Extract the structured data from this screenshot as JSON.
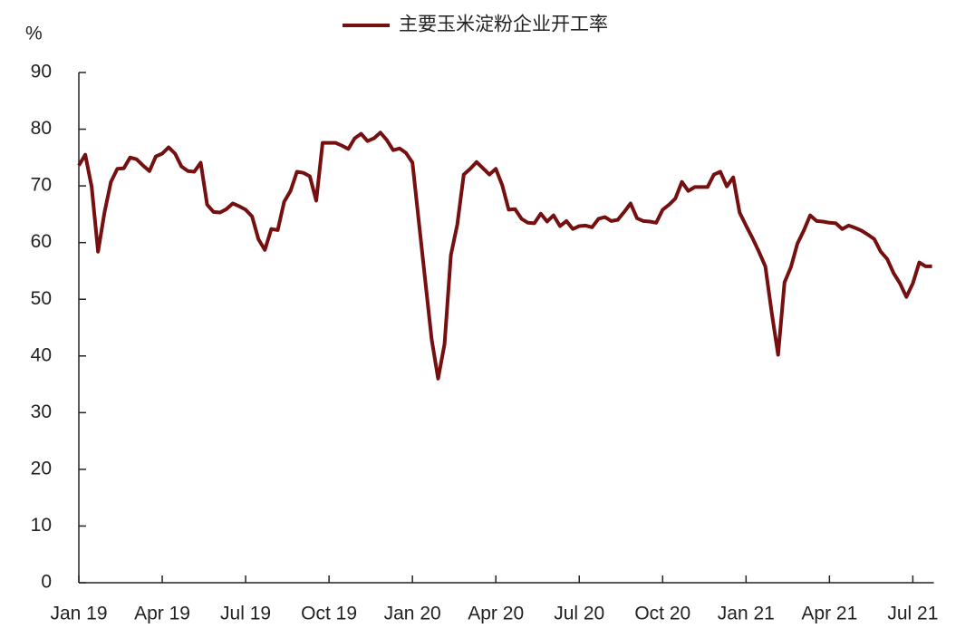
{
  "chart_data": {
    "type": "line",
    "y_label": "%",
    "categories": [
      "Jan 19",
      null,
      null,
      null,
      null,
      null,
      null,
      null,
      null,
      null,
      null,
      null,
      null,
      "Apr 19",
      null,
      null,
      null,
      null,
      null,
      null,
      null,
      null,
      null,
      null,
      null,
      null,
      "Jul 19",
      null,
      null,
      null,
      null,
      null,
      null,
      null,
      null,
      null,
      null,
      null,
      null,
      "Oct 19",
      null,
      null,
      null,
      null,
      null,
      null,
      null,
      null,
      null,
      null,
      null,
      null,
      "Jan 20",
      null,
      null,
      null,
      null,
      null,
      null,
      null,
      null,
      null,
      null,
      null,
      null,
      "Apr 20",
      null,
      null,
      null,
      null,
      null,
      null,
      null,
      null,
      null,
      null,
      null,
      null,
      "Jul 20",
      null,
      null,
      null,
      null,
      null,
      null,
      null,
      null,
      null,
      null,
      null,
      null,
      "Oct 20",
      null,
      null,
      null,
      null,
      null,
      null,
      null,
      null,
      null,
      null,
      null,
      null,
      "Jan 21",
      null,
      null,
      null,
      null,
      null,
      null,
      null,
      null,
      null,
      null,
      null,
      null,
      "Apr 21",
      null,
      null,
      null,
      null,
      null,
      null,
      null,
      null,
      null,
      null,
      null,
      null,
      "Jul 21",
      null,
      null,
      null
    ],
    "series": [
      {
        "name": "主要玉米淀粉企业开工率",
        "color": "#760f0f",
        "values": [
          73.6,
          75.5,
          69.8,
          58.4,
          65.3,
          70.7,
          73.0,
          73.1,
          75.0,
          74.7,
          73.6,
          72.6,
          75.2,
          75.7,
          76.8,
          75.7,
          73.4,
          72.6,
          72.5,
          74.1,
          66.7,
          65.4,
          65.3,
          65.9,
          66.9,
          66.4,
          65.8,
          64.6,
          60.6,
          58.7,
          62.4,
          62.2,
          67.2,
          69.1,
          72.5,
          72.3,
          71.7,
          67.4,
          77.6,
          77.6,
          77.6,
          77.1,
          76.5,
          78.4,
          79.2,
          77.9,
          78.4,
          79.4,
          78.1,
          76.3,
          76.6,
          75.8,
          74.1,
          63.7,
          53.3,
          42.9,
          36.0,
          42.1,
          57.8,
          63.2,
          72.0,
          73.0,
          74.2,
          73.1,
          72.0,
          73.0,
          70.1,
          65.8,
          65.9,
          64.2,
          63.5,
          63.4,
          65.1,
          63.7,
          64.8,
          62.9,
          63.8,
          62.4,
          62.9,
          63.0,
          62.7,
          64.2,
          64.5,
          63.8,
          64.0,
          65.4,
          66.9,
          64.3,
          63.8,
          63.7,
          63.5,
          65.8,
          66.7,
          67.8,
          70.7,
          69.1,
          69.8,
          69.8,
          69.8,
          72.0,
          72.5,
          69.9,
          71.5,
          65.3,
          63.0,
          60.8,
          58.4,
          55.8,
          47.7,
          40.2,
          53.0,
          55.7,
          59.8,
          62.1,
          64.8,
          63.8,
          63.7,
          63.5,
          63.4,
          62.4,
          63.0,
          62.6,
          62.1,
          61.4,
          60.6,
          58.4,
          57.1,
          54.6,
          52.8,
          50.4,
          52.8,
          56.5,
          55.8,
          55.8
        ]
      }
    ],
    "ylim": [
      0,
      90
    ],
    "yticks": [
      0,
      10,
      20,
      30,
      40,
      50,
      60,
      70,
      80,
      90
    ],
    "grid": false
  }
}
